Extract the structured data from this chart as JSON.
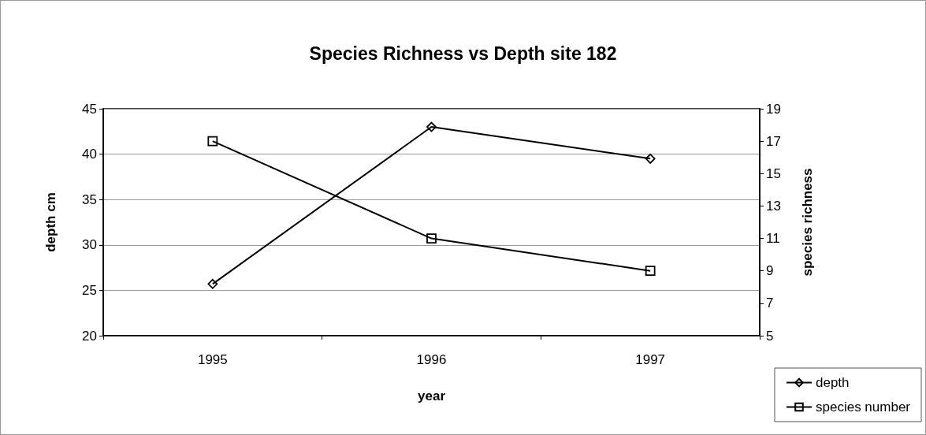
{
  "chart_data": {
    "type": "line",
    "title": "Species Richness vs Depth site 182",
    "xlabel": "year",
    "ylabel": "depth cm",
    "y2label": "species richness",
    "categories": [
      "1995",
      "1996",
      "1997"
    ],
    "series": [
      {
        "name": "depth",
        "color": "#000000",
        "values": [
          25.7,
          43,
          39.5
        ],
        "marker": "diamond"
      },
      {
        "name": "species number",
        "color": "#000000",
        "values": [
          17,
          11,
          9
        ],
        "marker": "square",
        "axis": "y2"
      }
    ],
    "ylim": [
      20,
      45
    ],
    "yticks": [
      20,
      25,
      30,
      35,
      40,
      45
    ],
    "y2lim": [
      5,
      19
    ],
    "y2ticks": [
      5,
      7,
      9,
      11,
      13,
      15,
      17,
      19
    ],
    "grid": "y",
    "legend": "bottom right",
    "line_style": "solid"
  }
}
